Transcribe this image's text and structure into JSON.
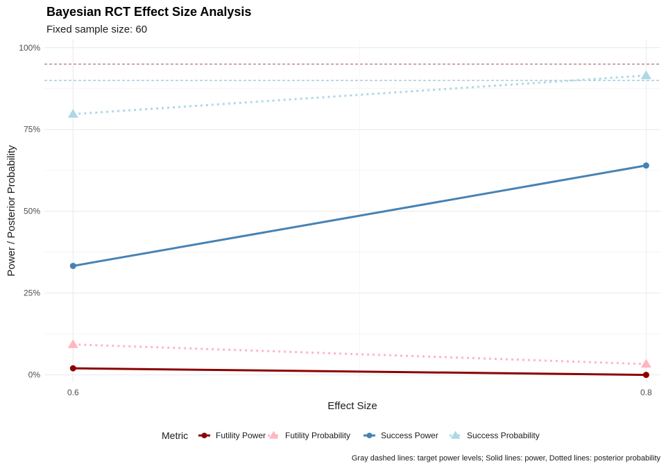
{
  "chart_data": {
    "type": "line",
    "title": "Bayesian RCT Effect Size Analysis",
    "subtitle": "Fixed sample size: 60",
    "xlabel": "Effect Size",
    "ylabel": "Power / Posterior Probability",
    "caption": "Gray dashed lines: target power levels; Solid lines: power, Dotted lines: posterior probability",
    "x": [
      0.6,
      0.8
    ],
    "x_ticks": [
      0.6,
      0.8
    ],
    "x_tick_labels": [
      "0.6",
      "0.8"
    ],
    "xlim": [
      0.59,
      0.805
    ],
    "ylim": [
      -0.02,
      1.025
    ],
    "y_ticks": [
      0,
      0.25,
      0.5,
      0.75,
      1.0
    ],
    "y_tick_labels": [
      "0%",
      "25%",
      "50%",
      "75%",
      "100%"
    ],
    "grid": true,
    "legend_title": "Metric",
    "legend_position": "bottom",
    "series": [
      {
        "name": "Futility Power",
        "values": [
          0.02,
          0.0
        ],
        "color": "#8B0000",
        "line_style": "solid",
        "marker": "circle"
      },
      {
        "name": "Futility Probability",
        "values": [
          0.093,
          0.033
        ],
        "color": "#FFB6C1",
        "line_style": "dotted",
        "marker": "triangle"
      },
      {
        "name": "Success Power",
        "values": [
          0.333,
          0.64
        ],
        "color": "#4682B4",
        "line_style": "solid",
        "marker": "circle"
      },
      {
        "name": "Success Probability",
        "values": [
          0.797,
          0.915
        ],
        "color": "#ADD8E6",
        "line_style": "dotted",
        "marker": "triangle"
      }
    ],
    "reference_lines": [
      {
        "y": 0.95,
        "color": "#A0525A",
        "line_style": "dashed"
      },
      {
        "y": 0.9,
        "color": "#7FAFC8",
        "line_style": "dashed"
      }
    ]
  }
}
